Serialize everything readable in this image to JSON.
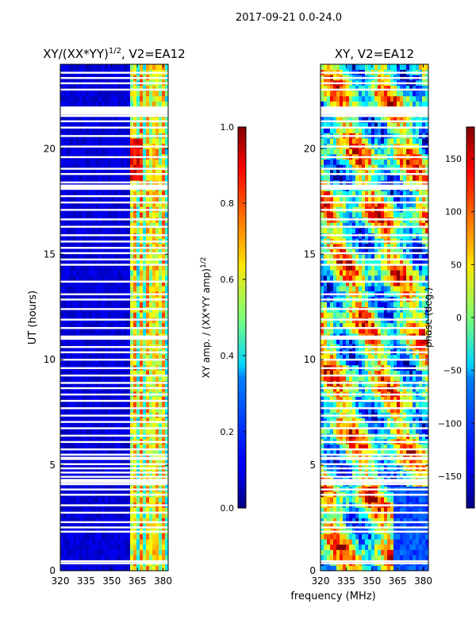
{
  "suptitle": "2017-09-21 0.0-24.0",
  "xlabel": "frequency (MHz)",
  "chart_data": [
    {
      "type": "heatmap",
      "title_prefix": "XY/(XX*YY)",
      "title_sup": "1/2",
      "title_suffix": ", V2=EA12",
      "ylabel": "UT (hours)",
      "xlim": [
        320,
        383
      ],
      "ylim": [
        0,
        24
      ],
      "xticks": [
        320,
        335,
        350,
        365,
        380
      ],
      "yticks": [
        0,
        5,
        10,
        15,
        20
      ],
      "colorbar": {
        "label_prefix": "XY amp. / (XX*YY amp)",
        "label_sup": "1/2",
        "range": [
          0.0,
          1.0
        ],
        "ticks": [
          "0.0",
          "0.2",
          "0.4",
          "0.6",
          "0.8",
          "1.0"
        ],
        "tick_values": [
          0.0,
          0.2,
          0.4,
          0.6,
          0.8,
          1.0
        ],
        "colormap": "jet"
      },
      "colormap": "jet"
    },
    {
      "type": "heatmap",
      "title_prefix": "XY, V2=EA12",
      "title_sup": "",
      "title_suffix": "",
      "ylabel": "",
      "xlim": [
        320,
        383
      ],
      "ylim": [
        0,
        24
      ],
      "xticks": [
        320,
        335,
        350,
        365,
        380
      ],
      "yticks": [
        0,
        5,
        10,
        15,
        20
      ],
      "colorbar": {
        "label_prefix": "phase (deg.)",
        "label_sup": "",
        "range": [
          -180,
          180
        ],
        "ticks": [
          "−150",
          "−100",
          "−50",
          "0",
          "50",
          "100",
          "150"
        ],
        "tick_values": [
          -150,
          -100,
          -50,
          0,
          50,
          100,
          150
        ],
        "colormap": "jet"
      },
      "colormap": "jet"
    }
  ],
  "flagged_hours": [
    0.45,
    0.35,
    1.85,
    2.05,
    2.3,
    2.75,
    3.1,
    3.6,
    3.85,
    4.1,
    4.25,
    4.45,
    4.65,
    4.85,
    5.05,
    5.35,
    5.5,
    5.75,
    6.1,
    6.4,
    6.75,
    7.05,
    7.35,
    7.7,
    8.05,
    8.35,
    8.65,
    8.9,
    9.25,
    9.6,
    10.0,
    10.35,
    10.6,
    11.0,
    11.1,
    11.5,
    11.9,
    12.4,
    12.85,
    13.1,
    13.7,
    14.5,
    14.75,
    15.05,
    15.3,
    15.6,
    15.9,
    16.3,
    16.65,
    17.1,
    17.45,
    17.75,
    18.2,
    18.4,
    18.8,
    19.05,
    19.6,
    20.1,
    20.6,
    21.0,
    21.3,
    21.55,
    21.7,
    22.8,
    23.1,
    23.35,
    23.6
  ]
}
